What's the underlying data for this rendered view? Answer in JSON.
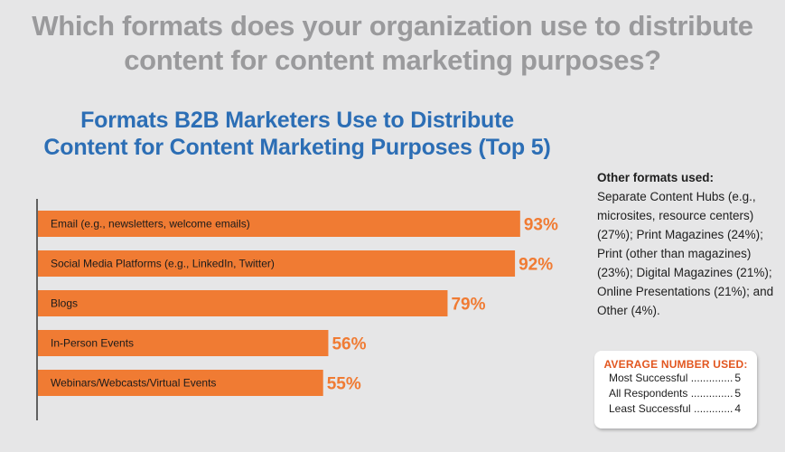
{
  "question": "Which formats does your organization use to distribute content for content marketing purposes?",
  "chart_data": {
    "type": "bar",
    "orientation": "horizontal",
    "title": "Formats B2B Marketers Use to Distribute Content for Content Marketing Purposes (Top 5)",
    "categories": [
      "Email (e.g., newsletters, welcome emails)",
      "Social Media Platforms (e.g., LinkedIn, Twitter)",
      "Blogs",
      "In-Person Events",
      "Webinars/Webcasts/Virtual Events"
    ],
    "values": [
      93,
      92,
      79,
      56,
      55
    ],
    "value_labels": [
      "93%",
      "92%",
      "79%",
      "56%",
      "55%"
    ],
    "xlim": [
      0,
      100
    ],
    "bar_color": "#f07b33"
  },
  "other_formats": {
    "heading": "Other formats used:",
    "text": "Separate Content Hubs (e.g., microsites, resource centers) (27%); Print Magazines (24%); Print (other than magazines) (23%); Digital Magazines (21%); Online Presentations (21%); and Other (4%)."
  },
  "average_box": {
    "title": "AVERAGE NUMBER USED:",
    "rows": [
      {
        "label": "Most Successful",
        "value": "5"
      },
      {
        "label": "All Respondents",
        "value": "5"
      },
      {
        "label": "Least Successful",
        "value": "4"
      }
    ]
  },
  "colors": {
    "background": "#e6e6e7",
    "question": "#9a9a9c",
    "title": "#2c6eb5",
    "bar": "#f07b33",
    "avg_title": "#e2561f"
  }
}
